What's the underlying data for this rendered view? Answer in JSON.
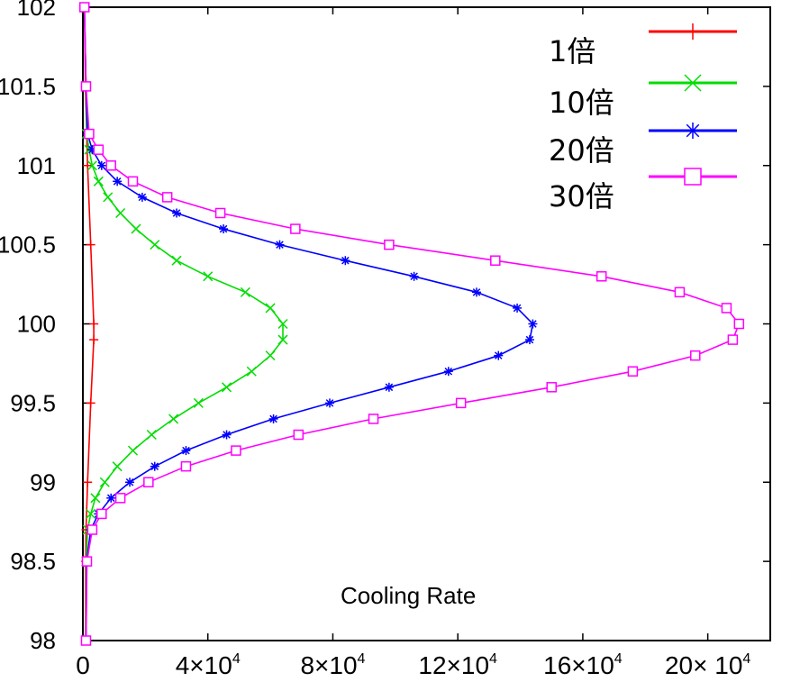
{
  "chart_data": {
    "type": "line",
    "title": "",
    "xlabel": "",
    "ylabel": "",
    "annotation": "Cooling Rate",
    "xlim": [
      0,
      220000
    ],
    "ylim": [
      98,
      102
    ],
    "grid": false,
    "legend_position": "top-right",
    "y_ticks": [
      "98",
      "98.5",
      "99",
      "99.5",
      "100",
      "100.5",
      "101",
      "101.5",
      "102"
    ],
    "x_ticks": [
      {
        "value": 0,
        "mantissa": "0",
        "exp": ""
      },
      {
        "value": 40000,
        "mantissa": "4×10",
        "exp": "4"
      },
      {
        "value": 80000,
        "mantissa": "8×10",
        "exp": "4"
      },
      {
        "value": 120000,
        "mantissa": "12×10",
        "exp": "4"
      },
      {
        "value": 160000,
        "mantissa": "16×10",
        "exp": "4"
      },
      {
        "value": 200000,
        "mantissa": "20× 10",
        "exp": "4"
      }
    ],
    "series": [
      {
        "name": "1倍",
        "color": "#ff0000",
        "marker": "plus",
        "points": [
          [
            500,
            102
          ],
          [
            800,
            101.5
          ],
          [
            1500,
            101
          ],
          [
            2500,
            100.5
          ],
          [
            3500,
            100
          ],
          [
            3500,
            99.9
          ],
          [
            2500,
            99.5
          ],
          [
            1500,
            99
          ],
          [
            1000,
            98.7
          ],
          [
            900,
            98.5
          ],
          [
            900,
            98
          ]
        ]
      },
      {
        "name": "10倍",
        "color": "#00dd00",
        "marker": "cross",
        "points": [
          [
            500,
            102
          ],
          [
            1000,
            101.5
          ],
          [
            1200,
            101.2
          ],
          [
            2000,
            101.1
          ],
          [
            3000,
            101
          ],
          [
            5000,
            100.9
          ],
          [
            8000,
            100.8
          ],
          [
            12000,
            100.7
          ],
          [
            17000,
            100.6
          ],
          [
            23000,
            100.5
          ],
          [
            30000,
            100.4
          ],
          [
            40000,
            100.3
          ],
          [
            52000,
            100.2
          ],
          [
            60000,
            100.1
          ],
          [
            64000,
            100
          ],
          [
            64000,
            99.9
          ],
          [
            60000,
            99.8
          ],
          [
            54000,
            99.7
          ],
          [
            46000,
            99.6
          ],
          [
            37000,
            99.5
          ],
          [
            29000,
            99.4
          ],
          [
            22000,
            99.3
          ],
          [
            16000,
            99.2
          ],
          [
            11000,
            99.1
          ],
          [
            7000,
            99
          ],
          [
            4000,
            98.9
          ],
          [
            2500,
            98.8
          ],
          [
            1500,
            98.7
          ],
          [
            1100,
            98.5
          ],
          [
            1000,
            98
          ]
        ]
      },
      {
        "name": "20倍",
        "color": "#0000ff",
        "marker": "asterisk",
        "points": [
          [
            500,
            102
          ],
          [
            1000,
            101.5
          ],
          [
            1500,
            101.2
          ],
          [
            3000,
            101.1
          ],
          [
            6000,
            101
          ],
          [
            11000,
            100.9
          ],
          [
            19000,
            100.8
          ],
          [
            30000,
            100.7
          ],
          [
            45000,
            100.6
          ],
          [
            63000,
            100.5
          ],
          [
            84000,
            100.4
          ],
          [
            106000,
            100.3
          ],
          [
            126000,
            100.2
          ],
          [
            139000,
            100.1
          ],
          [
            144000,
            100
          ],
          [
            143000,
            99.9
          ],
          [
            133000,
            99.8
          ],
          [
            117000,
            99.7
          ],
          [
            98000,
            99.6
          ],
          [
            79000,
            99.5
          ],
          [
            61000,
            99.4
          ],
          [
            46000,
            99.3
          ],
          [
            33000,
            99.2
          ],
          [
            23000,
            99.1
          ],
          [
            15000,
            99
          ],
          [
            9000,
            98.9
          ],
          [
            5000,
            98.8
          ],
          [
            2500,
            98.7
          ],
          [
            1200,
            98.5
          ],
          [
            1000,
            98
          ]
        ]
      },
      {
        "name": "30倍",
        "color": "#ff00ff",
        "marker": "square",
        "points": [
          [
            500,
            102
          ],
          [
            1000,
            101.5
          ],
          [
            2000,
            101.2
          ],
          [
            5000,
            101.1
          ],
          [
            9000,
            101
          ],
          [
            16000,
            100.9
          ],
          [
            27000,
            100.8
          ],
          [
            44000,
            100.7
          ],
          [
            68000,
            100.6
          ],
          [
            98000,
            100.5
          ],
          [
            132000,
            100.4
          ],
          [
            166000,
            100.3
          ],
          [
            191000,
            100.2
          ],
          [
            206000,
            100.1
          ],
          [
            210000,
            100
          ],
          [
            208000,
            99.9
          ],
          [
            196000,
            99.8
          ],
          [
            176000,
            99.7
          ],
          [
            150000,
            99.6
          ],
          [
            121000,
            99.5
          ],
          [
            93000,
            99.4
          ],
          [
            69000,
            99.3
          ],
          [
            49000,
            99.2
          ],
          [
            33000,
            99.1
          ],
          [
            21000,
            99
          ],
          [
            12000,
            98.9
          ],
          [
            6000,
            98.8
          ],
          [
            3000,
            98.7
          ],
          [
            1300,
            98.5
          ],
          [
            1000,
            98
          ]
        ]
      }
    ]
  }
}
